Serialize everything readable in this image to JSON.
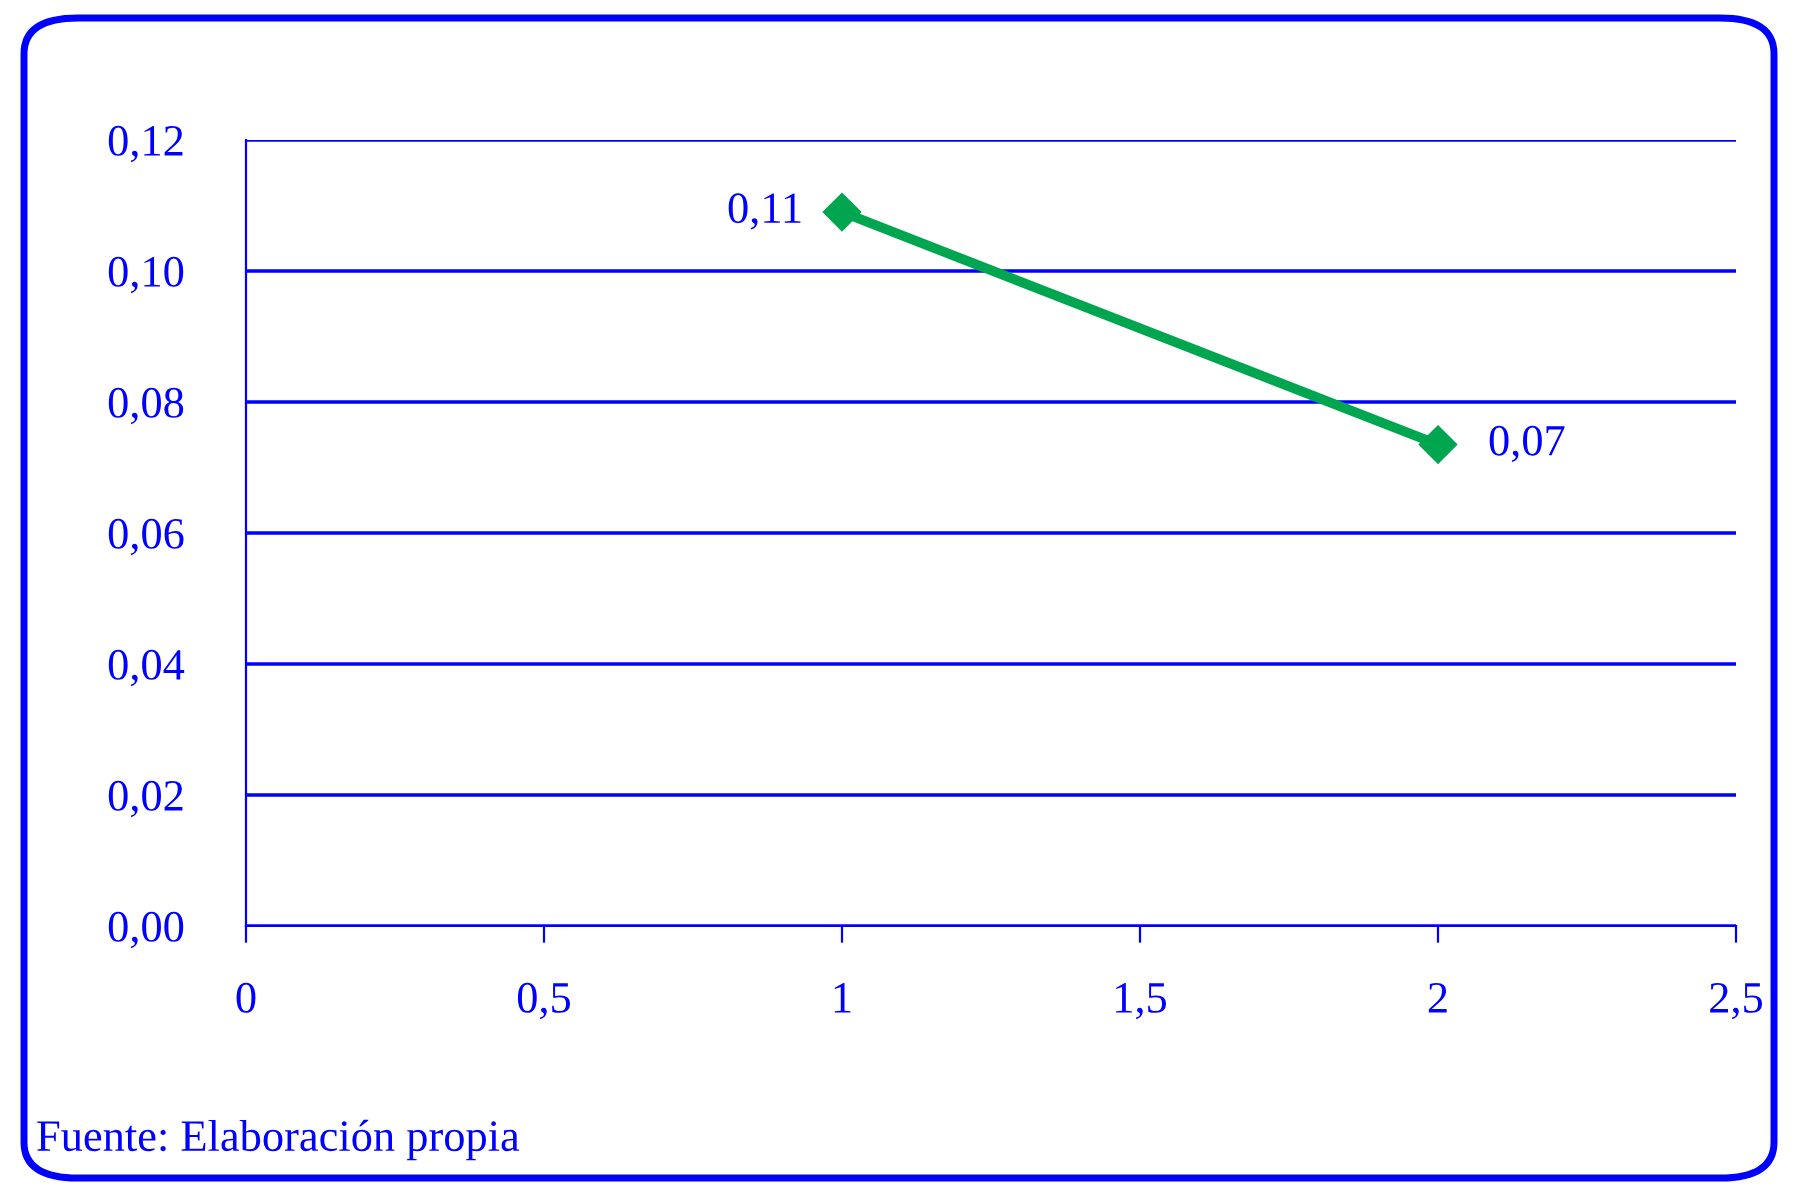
{
  "chart_data": {
    "type": "line",
    "x": [
      1,
      2
    ],
    "series": [
      {
        "color": "#00a550",
        "values": [
          0.109,
          0.0735
        ],
        "value_labels": [
          "0,11",
          "0,07"
        ]
      }
    ],
    "xlim": [
      0,
      2.5
    ],
    "ylim": [
      0,
      0.12
    ],
    "xticks": [
      0,
      {
        "value": 0.5,
        "label": "0,5"
      },
      1,
      {
        "value": 1.5,
        "label": "1,5"
      },
      2,
      {
        "value": 2.5,
        "label": "2,5"
      }
    ],
    "yticks": [
      {
        "value": 0,
        "label": "0,00"
      },
      {
        "value": 0.02,
        "label": "0,02"
      },
      {
        "value": 0.04,
        "label": "0,04"
      },
      {
        "value": 0.06,
        "label": "0,06"
      },
      {
        "value": 0.08,
        "label": "0,08"
      },
      {
        "value": 0.1,
        "label": "0,10"
      },
      {
        "value": 0.12,
        "label": "0,12"
      }
    ],
    "grid": "y",
    "marker": "diamond",
    "line_style": "solid",
    "annotations": [
      "Fuente: Elaboración propia"
    ]
  }
}
